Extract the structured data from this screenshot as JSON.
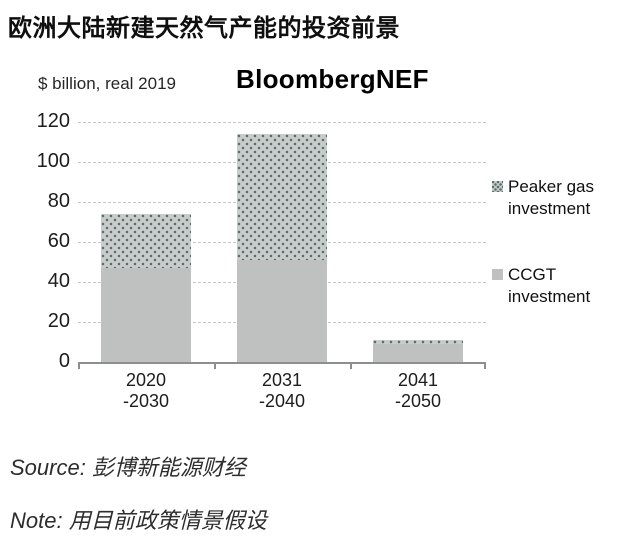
{
  "page_title": "欧洲大陆新建天然气产能的投资前景",
  "chart": {
    "unit_label": "$ billion, real 2019",
    "watermark": "BloombergNEF"
  },
  "legend": {
    "items": [
      {
        "label": "Peaker gas investment",
        "style": "dotted-pattern"
      },
      {
        "label": "CCGT investment",
        "style": "solid-gray"
      }
    ]
  },
  "footer": {
    "source": "Source: 彭博新能源财经",
    "note": "Note: 用目前政策情景假设"
  },
  "chart_data": {
    "type": "bar",
    "stacked": true,
    "title": "欧洲大陆新建天然气产能的投资前景",
    "ylabel": "$ billion, real 2019",
    "categories": [
      "2020\n-2030",
      "2031\n-2040",
      "2041\n-2050"
    ],
    "series": [
      {
        "name": "CCGT investment",
        "style": "solid-gray",
        "values": [
          47,
          51,
          9
        ]
      },
      {
        "name": "Peaker gas investment",
        "style": "dotted-pattern",
        "values": [
          27,
          63,
          2
        ]
      }
    ],
    "totals": [
      74,
      114,
      11
    ],
    "ylim": [
      0,
      120
    ],
    "ytick_interval": 20,
    "yticks": [
      0,
      20,
      40,
      60,
      80,
      100,
      120
    ],
    "grid": "dashed-horizontal",
    "legend_position": "right",
    "colors": {
      "ccgt": "#bfc1c1",
      "peaker_bg": "#c8cccb",
      "peaker_dot": "#5a6e6c",
      "gridline": "#c6c6c6",
      "axis": "#8e8e8e"
    }
  }
}
